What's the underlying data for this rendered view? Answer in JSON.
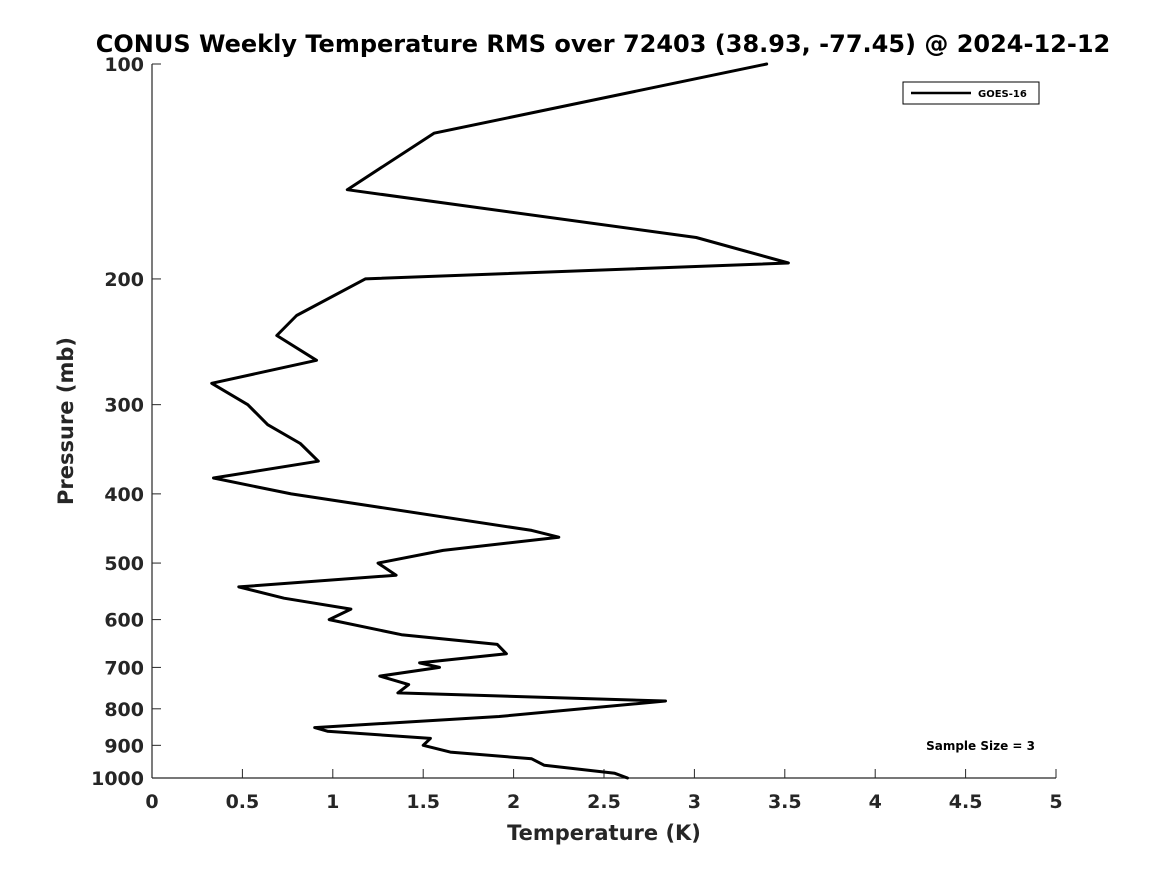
{
  "chart_data": {
    "type": "line",
    "title": "CONUS Weekly Temperature RMS over 72403 (38.93, -77.45) @ 2024-12-12",
    "xlabel": "Temperature (K)",
    "ylabel": "Pressure (mb)",
    "xlim": [
      0,
      5
    ],
    "ylim": [
      100,
      1000
    ],
    "y_scale": "log",
    "y_reversed": true,
    "grid": false,
    "legend_position": "top-right",
    "x_ticks": [
      "0",
      "0.5",
      "1",
      "1.5",
      "2",
      "2.5",
      "3",
      "3.5",
      "4",
      "4.5",
      "5"
    ],
    "x_tick_values": [
      0,
      0.5,
      1,
      1.5,
      2,
      2.5,
      3,
      3.5,
      4,
      4.5,
      5
    ],
    "y_ticks": [
      "100",
      "200",
      "300",
      "400",
      "500",
      "600",
      "700",
      "800",
      "900",
      "1000"
    ],
    "y_tick_values": [
      100,
      200,
      300,
      400,
      500,
      600,
      700,
      800,
      900,
      1000
    ],
    "series": [
      {
        "name": "GOES-16",
        "color": "#000000",
        "points": [
          [
            3.4,
            100
          ],
          [
            1.56,
            125
          ],
          [
            1.08,
            150
          ],
          [
            3.01,
            175
          ],
          [
            3.52,
            190
          ],
          [
            1.18,
            200
          ],
          [
            0.8,
            225
          ],
          [
            0.69,
            240
          ],
          [
            0.91,
            260
          ],
          [
            0.33,
            280
          ],
          [
            0.53,
            300
          ],
          [
            0.64,
            320
          ],
          [
            0.82,
            340
          ],
          [
            0.92,
            360
          ],
          [
            0.34,
            380
          ],
          [
            0.77,
            400
          ],
          [
            2.1,
            450
          ],
          [
            2.25,
            460
          ],
          [
            1.61,
            480
          ],
          [
            1.25,
            500
          ],
          [
            1.35,
            520
          ],
          [
            0.48,
            540
          ],
          [
            0.73,
            560
          ],
          [
            1.1,
            580
          ],
          [
            0.98,
            600
          ],
          [
            1.38,
            630
          ],
          [
            1.91,
            650
          ],
          [
            1.96,
            670
          ],
          [
            1.48,
            690
          ],
          [
            1.59,
            700
          ],
          [
            1.26,
            720
          ],
          [
            1.42,
            740
          ],
          [
            1.36,
            760
          ],
          [
            2.84,
            780
          ],
          [
            1.92,
            820
          ],
          [
            0.9,
            850
          ],
          [
            0.97,
            860
          ],
          [
            1.54,
            880
          ],
          [
            1.5,
            900
          ],
          [
            1.65,
            920
          ],
          [
            2.1,
            940
          ],
          [
            2.17,
            960
          ],
          [
            2.56,
            985
          ],
          [
            2.63,
            1000
          ]
        ]
      }
    ],
    "annotations": [
      {
        "text": "Sample Size = 3"
      }
    ]
  }
}
